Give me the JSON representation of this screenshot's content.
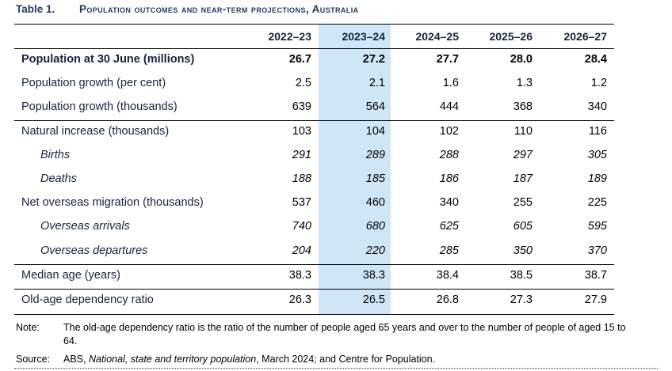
{
  "title": {
    "number": "Table 1.",
    "text": "Population outcomes and near-term projections, Australia"
  },
  "columns": [
    "2022–23",
    "2023–24",
    "2024–25",
    "2025–26",
    "2026–27"
  ],
  "rows": [
    {
      "label": "Population at 30 June (millions)",
      "values": [
        "26.7",
        "27.2",
        "27.7",
        "28.0",
        "28.4"
      ]
    },
    {
      "label": "Population growth (per cent)",
      "values": [
        "2.5",
        "2.1",
        "1.6",
        "1.3",
        "1.2"
      ]
    },
    {
      "label": "Population growth (thousands)",
      "values": [
        "639",
        "564",
        "444",
        "368",
        "340"
      ]
    },
    {
      "label": "Natural increase (thousands)",
      "values": [
        "103",
        "104",
        "102",
        "110",
        "116"
      ]
    },
    {
      "label": "Births",
      "values": [
        "291",
        "289",
        "288",
        "297",
        "305"
      ]
    },
    {
      "label": "Deaths",
      "values": [
        "188",
        "185",
        "186",
        "187",
        "189"
      ]
    },
    {
      "label": "Net overseas migration (thousands)",
      "values": [
        "537",
        "460",
        "340",
        "255",
        "225"
      ]
    },
    {
      "label": "Overseas arrivals",
      "values": [
        "740",
        "680",
        "625",
        "605",
        "595"
      ]
    },
    {
      "label": "Overseas departures",
      "values": [
        "204",
        "220",
        "285",
        "350",
        "370"
      ]
    },
    {
      "label": "Median age (years)",
      "values": [
        "38.3",
        "38.3",
        "38.4",
        "38.5",
        "38.7"
      ]
    },
    {
      "label": "Old-age dependency ratio",
      "values": [
        "26.3",
        "26.5",
        "26.8",
        "27.3",
        "27.9"
      ]
    }
  ],
  "note": {
    "label": "Note:",
    "text": "The old-age dependency ratio is the ratio of the number of people aged 65 years and over to the number of people of aged 15 to 64."
  },
  "source": {
    "label": "Source:",
    "prefix": "ABS, ",
    "italic": "National, state and territory population",
    "suffix": ", March 2024; and Centre for Population."
  },
  "colors": {
    "highlight": "#cfe6f7",
    "heading": "#1f3a5f"
  }
}
